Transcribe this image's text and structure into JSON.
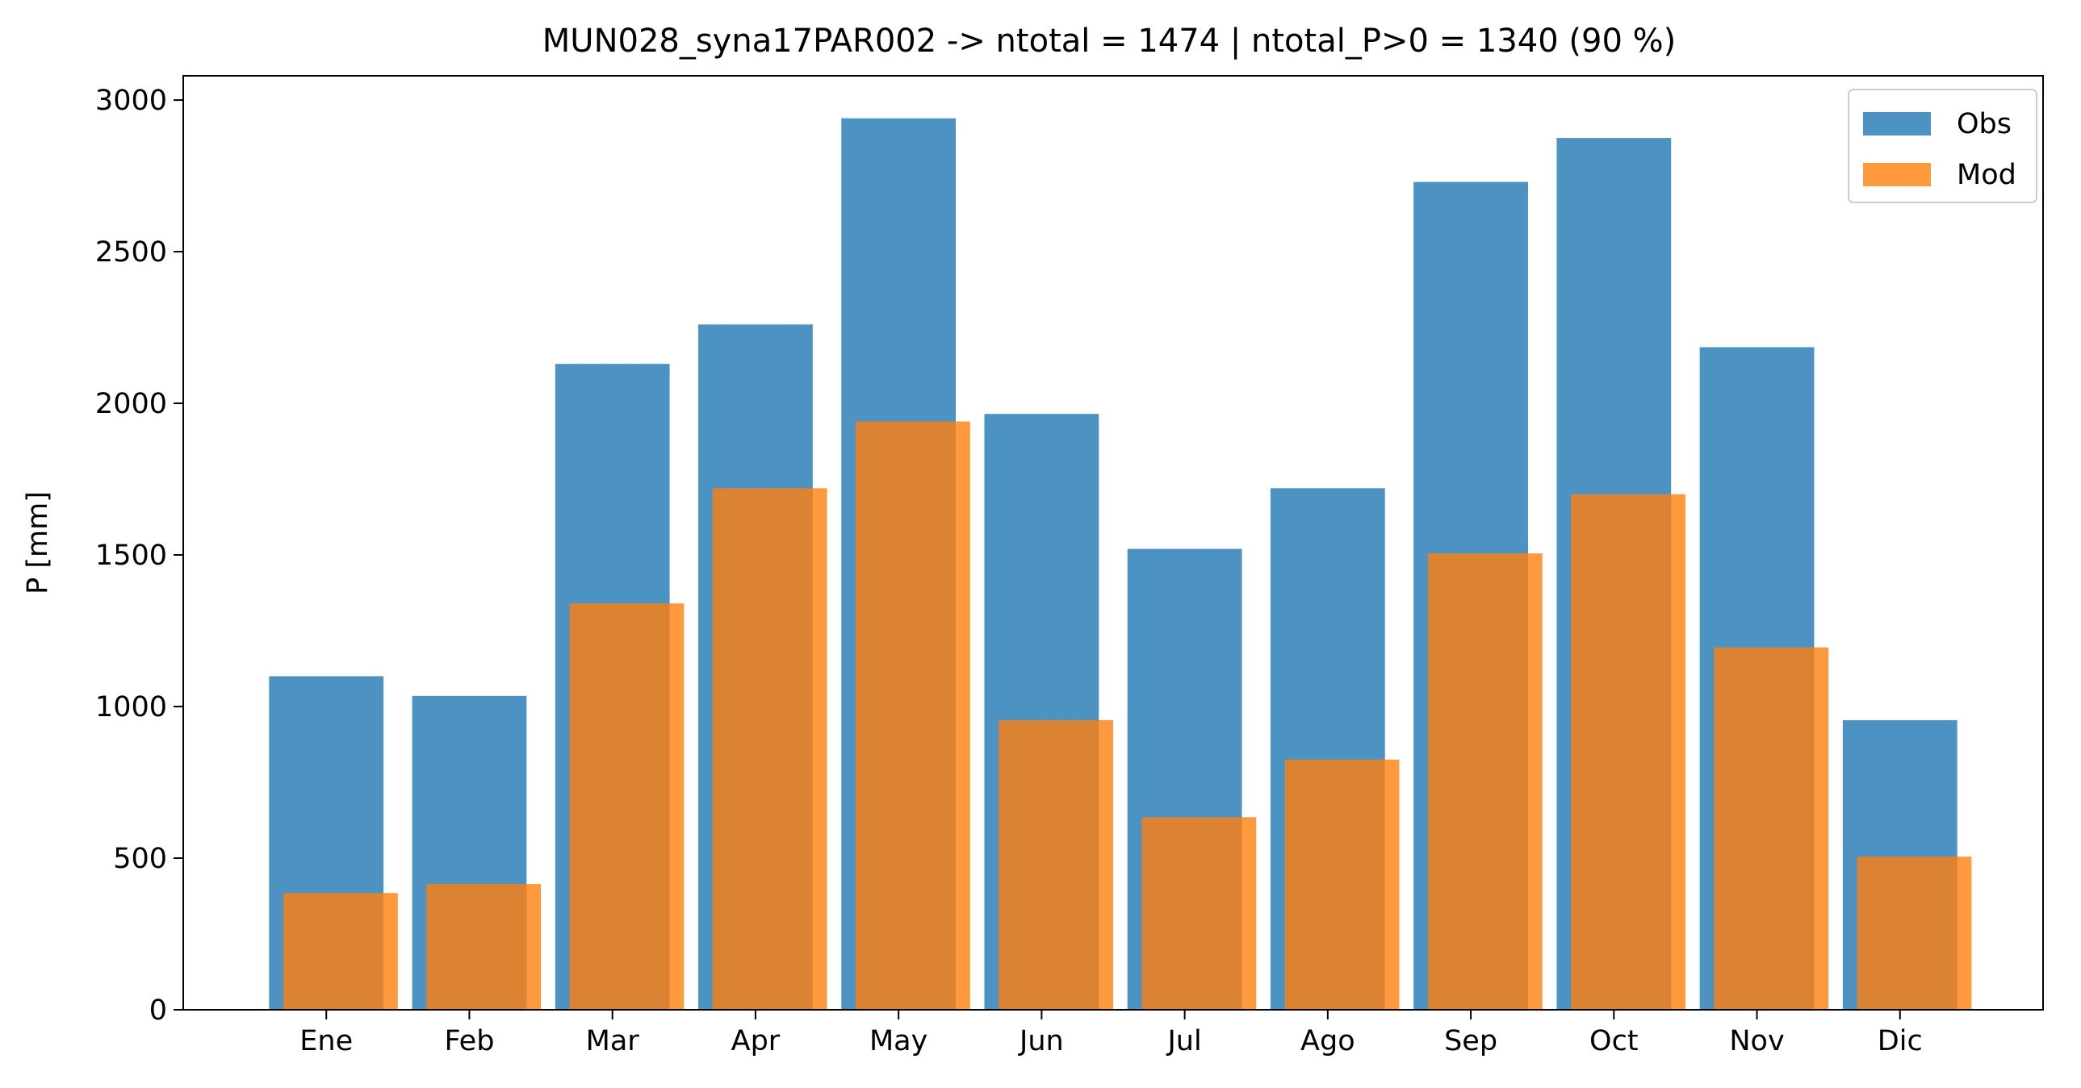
{
  "chart_data": {
    "type": "bar",
    "title": "MUN028_syna17PAR002 -> ntotal = 1474 | ntotal_P>0 = 1340 (90 %)",
    "xlabel": "",
    "ylabel": "P [mm]",
    "ylim": [
      0,
      3080
    ],
    "yticks": [
      0,
      500,
      1000,
      1500,
      2000,
      2500,
      3000
    ],
    "categories": [
      "Ene",
      "Feb",
      "Mar",
      "Apr",
      "May",
      "Jun",
      "Jul",
      "Ago",
      "Sep",
      "Oct",
      "Nov",
      "Dic"
    ],
    "series": [
      {
        "name": "Obs",
        "color": "#1f77b4",
        "values": [
          1100,
          1035,
          2130,
          2260,
          2940,
          1965,
          1520,
          1720,
          2730,
          2875,
          2185,
          955
        ]
      },
      {
        "name": "Mod",
        "color": "#ff7f0e",
        "values": [
          385,
          415,
          1340,
          1720,
          1940,
          955,
          635,
          825,
          1505,
          1700,
          1195,
          505
        ]
      }
    ],
    "legend_position": "top-right",
    "grid": false
  }
}
